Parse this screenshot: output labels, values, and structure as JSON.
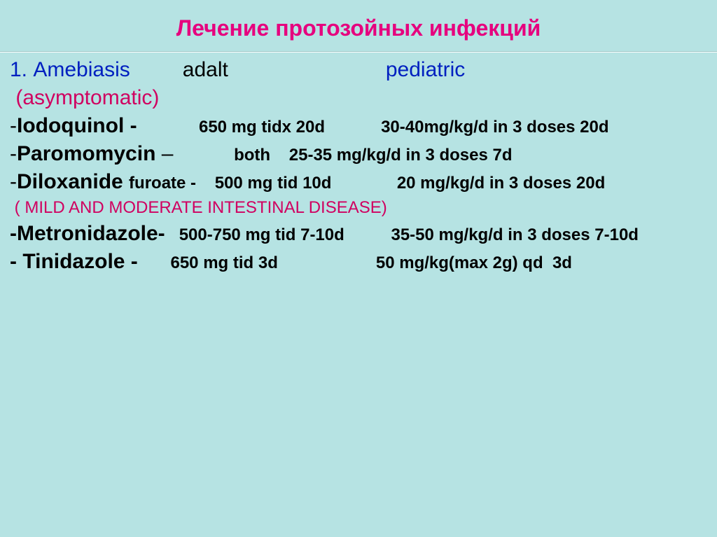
{
  "title": "Лечение протозойных инфекций",
  "header": {
    "num": "1. ",
    "disease": "Amebiasis",
    "gap1": "         ",
    "adult": "adalt",
    "gap2": "                           ",
    "pediatric": "pediatric"
  },
  "subtype": " (asymptomatic)",
  "rows": [
    {
      "dash": "-",
      "drug": "Iodoquinol - ",
      "gap": "            ",
      "adult": "650 mg tidx 20d",
      "gap2": "            ",
      "ped": "30-40mg/kg/d in 3 doses 20d"
    },
    {
      "dash": "-",
      "drug": "Paromomycin ",
      "sep": "–",
      "gap": "             ",
      "adult": "both    25-35 mg/kg/d in 3 doses 7d",
      "gap2": "",
      "ped": ""
    },
    {
      "dash": "-",
      "drug": "Diloxanide ",
      "sub": "furoate -",
      "gap": "    ",
      "adult": "500 mg tid 10d",
      "gap2": "              ",
      "ped": "20 mg/kg/d in 3 doses 20d"
    }
  ],
  "note": " ( MILD AND MODERATE INTESTINAL DISEASE)",
  "rows2": [
    {
      "drug": "-Metronidazole-",
      "gap": "   ",
      "adult": "500-750 mg tid 7-10d",
      "gap2": "          ",
      "ped": "35-50 mg/kg/d in 3 doses 7-10d"
    },
    {
      "drug": "- Tinidazole -",
      "gap": "       ",
      "adult": "650 mg tid 3d",
      "gap2": "                     ",
      "ped": "50 mg/kg(max 2g) qd  3d"
    }
  ],
  "colors": {
    "background": "#b6e3e3",
    "title": "#e6007e",
    "blue": "#0020c0",
    "red": "#d00060",
    "black": "#000000"
  },
  "typography": {
    "title_fontsize": 32,
    "big_fontsize": 30,
    "med_fontsize": 24,
    "font_family": "Arial"
  }
}
